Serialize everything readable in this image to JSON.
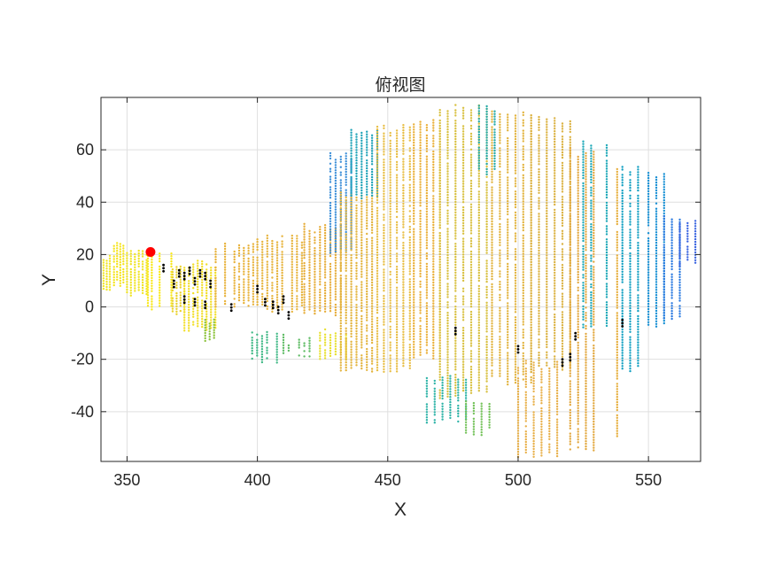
{
  "chart_data": {
    "type": "scatter",
    "title": "俯视图",
    "xlabel": "X",
    "ylabel": "Y",
    "xlim": [
      340,
      570
    ],
    "ylim": [
      -59,
      80
    ],
    "xticks": [
      350,
      400,
      450,
      500,
      550
    ],
    "yticks": [
      -40,
      -20,
      0,
      20,
      40,
      60
    ],
    "grid": true,
    "colormap": "parula",
    "marker_color": "#ff0000",
    "marker_point": {
      "x": 359,
      "y": 21
    },
    "bands": [
      {
        "x": [
          341,
          345
        ],
        "y": [
          6,
          20
        ],
        "color": "#f2e626",
        "dx": 1.2
      },
      {
        "x": [
          345,
          350
        ],
        "y": [
          8,
          26
        ],
        "color": "#f5e41f",
        "dx": 1.2
      },
      {
        "x": [
          350,
          358
        ],
        "y": [
          4,
          23
        ],
        "color": "#f0e424",
        "dx": 1.5
      },
      {
        "x": [
          358,
          368
        ],
        "y": [
          -2,
          23
        ],
        "color": "#f9e81a",
        "dx": 1.5
      },
      {
        "x": [
          366,
          372
        ],
        "y": [
          -3,
          17
        ],
        "color": "#e9d12b",
        "dx": 1.5
      },
      {
        "x": [
          372,
          384
        ],
        "y": [
          -10,
          18
        ],
        "color": "#f2de26",
        "dx": 1.7
      },
      {
        "x": [
          380,
          384
        ],
        "y": [
          -14,
          -3
        ],
        "color": "#8cc23c",
        "dx": 1.7
      },
      {
        "x": [
          384,
          400
        ],
        "y": [
          0,
          25
        ],
        "color": "#e8b23a",
        "dx": 1.8
      },
      {
        "x": [
          400,
          418
        ],
        "y": [
          -2,
          28
        ],
        "color": "#e7b43d",
        "dx": 1.9
      },
      {
        "x": [
          398,
          408
        ],
        "y": [
          -22,
          -8
        ],
        "color": "#3fb885",
        "dx": 1.9
      },
      {
        "x": [
          410,
          420
        ],
        "y": [
          -19,
          -10
        ],
        "color": "#5dbb63",
        "dx": 2
      },
      {
        "x": [
          418,
          432
        ],
        "y": [
          -4,
          32
        ],
        "color": "#e6ad3a",
        "dx": 2
      },
      {
        "x": [
          424,
          434
        ],
        "y": [
          -20,
          -8
        ],
        "color": "#e8e02f",
        "dx": 2
      },
      {
        "x": [
          428,
          436
        ],
        "y": [
          20,
          60
        ],
        "color": "#3d8fd8",
        "dx": 2
      },
      {
        "x": [
          432,
          445
        ],
        "y": [
          -25,
          45
        ],
        "color": "#e3b43e",
        "dx": 2
      },
      {
        "x": [
          436,
          446
        ],
        "y": [
          40,
          68
        ],
        "color": "#1fa3b8",
        "dx": 2
      },
      {
        "x": [
          446,
          460
        ],
        "y": [
          -25,
          70
        ],
        "color": "#e8be45",
        "dx": 2.5
      },
      {
        "x": [
          460,
          470
        ],
        "y": [
          -20,
          72
        ],
        "color": "#eab03a",
        "dx": 2.5
      },
      {
        "x": [
          470,
          490
        ],
        "y": [
          -35,
          78
        ],
        "color": "#d8c040",
        "dx": 3
      },
      {
        "x": [
          465,
          480
        ],
        "y": [
          -45,
          -25
        ],
        "color": "#2db3a7",
        "dx": 3
      },
      {
        "x": [
          480,
          490
        ],
        "y": [
          -50,
          -35
        ],
        "color": "#74c25a",
        "dx": 3
      },
      {
        "x": [
          490,
          505
        ],
        "y": [
          -30,
          76
        ],
        "color": "#e2b440",
        "dx": 3
      },
      {
        "x": [
          485,
          495
        ],
        "y": [
          50,
          78
        ],
        "color": "#26aaa8",
        "dx": 3
      },
      {
        "x": [
          500,
          515
        ],
        "y": [
          -58,
          -20
        ],
        "color": "#e8b04a",
        "dx": 3
      },
      {
        "x": [
          505,
          520
        ],
        "y": [
          -25,
          74
        ],
        "color": "#dbb242",
        "dx": 3
      },
      {
        "x": [
          520,
          530
        ],
        "y": [
          -55,
          62
        ],
        "color": "#e2a840",
        "dx": 3
      },
      {
        "x": [
          525,
          535
        ],
        "y": [
          -10,
          64
        ],
        "color": "#1ea8b8",
        "dx": 3
      },
      {
        "x": [
          535,
          545
        ],
        "y": [
          -50,
          55
        ],
        "color": "#e6ae3c",
        "dx": 3
      },
      {
        "x": [
          540,
          550
        ],
        "y": [
          -25,
          54
        ],
        "color": "#14a0c2",
        "dx": 3
      },
      {
        "x": [
          550,
          558
        ],
        "y": [
          -8,
          52
        ],
        "color": "#1890d4",
        "dx": 3
      },
      {
        "x": [
          556,
          562
        ],
        "y": [
          -5,
          36
        ],
        "color": "#2b7ae0",
        "dx": 3
      },
      {
        "x": [
          562,
          568
        ],
        "y": [
          15,
          35
        ],
        "color": "#3a64e0",
        "dx": 3
      }
    ],
    "black_points": [
      [
        364,
        16
      ],
      [
        368,
        10
      ],
      [
        370,
        14
      ],
      [
        372,
        13
      ],
      [
        374,
        15
      ],
      [
        376,
        11
      ],
      [
        378,
        14
      ],
      [
        380,
        13
      ],
      [
        382,
        10
      ],
      [
        372,
        4
      ],
      [
        376,
        3
      ],
      [
        380,
        2
      ],
      [
        390,
        1
      ],
      [
        400,
        8
      ],
      [
        403,
        3
      ],
      [
        406,
        2
      ],
      [
        408,
        0
      ],
      [
        410,
        4
      ],
      [
        412,
        -2
      ],
      [
        476,
        -8
      ],
      [
        500,
        -15
      ],
      [
        517,
        -20
      ],
      [
        520,
        -18
      ],
      [
        522,
        -10
      ],
      [
        540,
        -5
      ]
    ]
  }
}
